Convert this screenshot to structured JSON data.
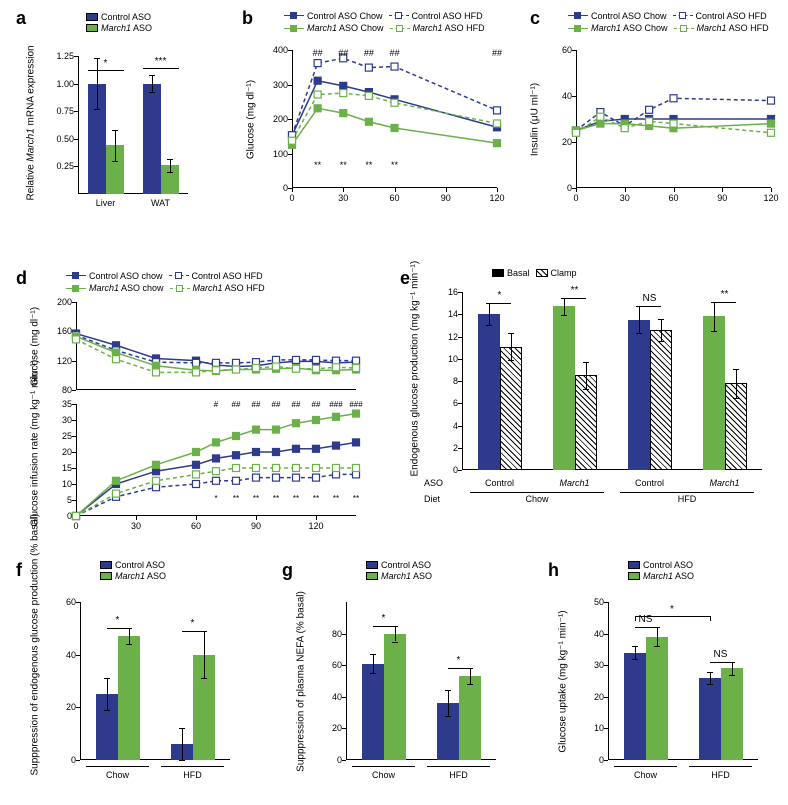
{
  "colors": {
    "blue": "#2e3a8c",
    "green": "#6cb04a",
    "white": "#ffffff",
    "black": "#000000"
  },
  "fonts": {
    "panel_letter": 18,
    "axis": 10,
    "tick": 9,
    "legend": 9
  },
  "panel_a": {
    "letter": "a",
    "y_label": "Relative March1 mRNA expression",
    "x_categories": [
      "Liver",
      "WAT"
    ],
    "legend": [
      {
        "label": "Control ASO",
        "color": "#2e3a8c"
      },
      {
        "label": "March1 ASO",
        "color": "#6cb04a"
      }
    ],
    "y_lim": [
      0,
      1.25
    ],
    "y_ticks": [
      0.25,
      0.5,
      0.75,
      1.0,
      1.25
    ],
    "bars": {
      "Liver": [
        {
          "val": 1.0,
          "err": 0.23,
          "color": "#2e3a8c"
        },
        {
          "val": 0.44,
          "err": 0.14,
          "color": "#6cb04a"
        }
      ],
      "WAT": [
        {
          "val": 1.0,
          "err": 0.08,
          "color": "#2e3a8c"
        },
        {
          "val": 0.26,
          "err": 0.06,
          "color": "#6cb04a"
        }
      ]
    },
    "sig": [
      {
        "label": "*",
        "group": "Liver"
      },
      {
        "label": "***",
        "group": "WAT"
      }
    ]
  },
  "panel_b": {
    "letter": "b",
    "y_label": "Glucose (mg dl⁻¹)",
    "x_label_min": "0",
    "x_values": [
      0,
      15,
      30,
      45,
      60,
      120
    ],
    "x_ticks": [
      0,
      30,
      60,
      90,
      120
    ],
    "y_lim": [
      0,
      400
    ],
    "y_ticks": [
      0,
      100,
      200,
      300,
      400
    ],
    "series": [
      {
        "name": "Control ASO Chow",
        "color": "#2e3a8c",
        "fill": "#2e3a8c",
        "dash": false,
        "data": [
          [
            0,
            152
          ],
          [
            15,
            311
          ],
          [
            30,
            296
          ],
          [
            45,
            278
          ],
          [
            60,
            257
          ],
          [
            120,
            176
          ]
        ]
      },
      {
        "name": "Control ASO HFD",
        "color": "#2e3a8c",
        "fill": "#ffffff",
        "dash": true,
        "data": [
          [
            0,
            153
          ],
          [
            15,
            362
          ],
          [
            30,
            376
          ],
          [
            45,
            349
          ],
          [
            60,
            352
          ],
          [
            120,
            225
          ]
        ]
      },
      {
        "name": "March1 ASO Chow",
        "color": "#6cb04a",
        "fill": "#6cb04a",
        "dash": false,
        "data": [
          [
            0,
            125
          ],
          [
            15,
            231
          ],
          [
            30,
            217
          ],
          [
            45,
            192
          ],
          [
            60,
            174
          ],
          [
            120,
            130
          ]
        ]
      },
      {
        "name": "March1 ASO HFD",
        "color": "#6cb04a",
        "fill": "#ffffff",
        "dash": true,
        "data": [
          [
            0,
            137
          ],
          [
            15,
            271
          ],
          [
            30,
            275
          ],
          [
            45,
            267
          ],
          [
            60,
            247
          ],
          [
            120,
            187
          ]
        ]
      }
    ],
    "annotations_top": [
      "##",
      "##",
      "##",
      "##",
      "##"
    ],
    "annotations_bot": [
      "**",
      "**",
      "**",
      "**"
    ]
  },
  "panel_c": {
    "letter": "c",
    "y_label": "Insulin (μU ml⁻¹)",
    "x_ticks": [
      0,
      30,
      60,
      90,
      120
    ],
    "y_lim": [
      0,
      60
    ],
    "y_ticks": [
      0,
      20,
      40,
      60
    ],
    "series": [
      {
        "name": "Control ASO Chow",
        "color": "#2e3a8c",
        "fill": "#2e3a8c",
        "dash": false,
        "data": [
          [
            0,
            25
          ],
          [
            15,
            29
          ],
          [
            30,
            30
          ],
          [
            45,
            30
          ],
          [
            60,
            30
          ],
          [
            120,
            30
          ]
        ]
      },
      {
        "name": "Control ASO HFD",
        "color": "#2e3a8c",
        "fill": "#ffffff",
        "dash": true,
        "data": [
          [
            0,
            25
          ],
          [
            15,
            33
          ],
          [
            30,
            27
          ],
          [
            45,
            34
          ],
          [
            60,
            39
          ],
          [
            120,
            38
          ]
        ]
      },
      {
        "name": "March1 ASO Chow",
        "color": "#6cb04a",
        "fill": "#6cb04a",
        "dash": false,
        "data": [
          [
            0,
            25
          ],
          [
            15,
            28
          ],
          [
            30,
            28
          ],
          [
            45,
            27
          ],
          [
            60,
            26
          ],
          [
            120,
            28
          ]
        ]
      },
      {
        "name": "March1 ASO HFD",
        "color": "#6cb04a",
        "fill": "#ffffff",
        "dash": true,
        "data": [
          [
            0,
            24
          ],
          [
            15,
            31
          ],
          [
            30,
            26
          ],
          [
            45,
            29
          ],
          [
            60,
            28
          ],
          [
            120,
            24
          ]
        ]
      }
    ]
  },
  "panel_d": {
    "letter": "d",
    "top": {
      "y_label": "Glucose (mg dl⁻¹)",
      "y_lim": [
        80,
        200
      ],
      "y_ticks": [
        80,
        120,
        160,
        200
      ],
      "x_lim": [
        0,
        140
      ],
      "series": [
        {
          "color": "#2e3a8c",
          "fill": "#2e3a8c",
          "dash": false,
          "data": [
            [
              0,
              157
            ],
            [
              20,
              141
            ],
            [
              40,
              123
            ],
            [
              60,
              120
            ],
            [
              70,
              114
            ],
            [
              80,
              112
            ],
            [
              90,
              113
            ],
            [
              100,
              117
            ],
            [
              110,
              119
            ],
            [
              120,
              119
            ],
            [
              130,
              117
            ],
            [
              140,
              118
            ]
          ]
        },
        {
          "color": "#2e3a8c",
          "fill": "#ffffff",
          "dash": true,
          "data": [
            [
              0,
              155
            ],
            [
              20,
              134
            ],
            [
              40,
              118
            ],
            [
              60,
              117
            ],
            [
              70,
              117
            ],
            [
              80,
              117
            ],
            [
              90,
              118
            ],
            [
              100,
              121
            ],
            [
              110,
              121
            ],
            [
              120,
              121
            ],
            [
              130,
              120
            ],
            [
              140,
              120
            ]
          ]
        },
        {
          "color": "#6cb04a",
          "fill": "#6cb04a",
          "dash": false,
          "data": [
            [
              0,
              153
            ],
            [
              20,
              131
            ],
            [
              40,
              113
            ],
            [
              60,
              107
            ],
            [
              70,
              106
            ],
            [
              80,
              108
            ],
            [
              90,
              108
            ],
            [
              100,
              109
            ],
            [
              110,
              110
            ],
            [
              120,
              107
            ],
            [
              130,
              107
            ],
            [
              140,
              108
            ]
          ]
        },
        {
          "color": "#6cb04a",
          "fill": "#ffffff",
          "dash": true,
          "data": [
            [
              0,
              149
            ],
            [
              20,
              122
            ],
            [
              40,
              104
            ],
            [
              60,
              104
            ],
            [
              70,
              107
            ],
            [
              80,
              108
            ],
            [
              90,
              110
            ],
            [
              100,
              112
            ],
            [
              110,
              109
            ],
            [
              120,
              109
            ],
            [
              130,
              111
            ],
            [
              140,
              110
            ]
          ]
        }
      ]
    },
    "bot": {
      "y_label": "Glucose infusion rate (mg kg⁻¹ min⁻¹)",
      "y_lim": [
        0,
        35
      ],
      "y_ticks": [
        0,
        5,
        10,
        15,
        20,
        25,
        30,
        35
      ],
      "x_ticks": [
        0,
        30,
        60,
        90,
        120
      ],
      "series": [
        {
          "color": "#2e3a8c",
          "fill": "#2e3a8c",
          "dash": false,
          "data": [
            [
              0,
              0
            ],
            [
              20,
              10
            ],
            [
              40,
              14
            ],
            [
              60,
              16
            ],
            [
              70,
              18
            ],
            [
              80,
              19
            ],
            [
              90,
              20
            ],
            [
              100,
              20
            ],
            [
              110,
              21
            ],
            [
              120,
              21
            ],
            [
              130,
              22
            ],
            [
              140,
              23
            ]
          ]
        },
        {
          "color": "#2e3a8c",
          "fill": "#ffffff",
          "dash": true,
          "data": [
            [
              0,
              0
            ],
            [
              20,
              6
            ],
            [
              40,
              9
            ],
            [
              60,
              10
            ],
            [
              70,
              11
            ],
            [
              80,
              11
            ],
            [
              90,
              12
            ],
            [
              100,
              12
            ],
            [
              110,
              12
            ],
            [
              120,
              12
            ],
            [
              130,
              13
            ],
            [
              140,
              13
            ]
          ]
        },
        {
          "color": "#6cb04a",
          "fill": "#6cb04a",
          "dash": false,
          "data": [
            [
              0,
              0
            ],
            [
              20,
              11
            ],
            [
              40,
              16
            ],
            [
              60,
              20
            ],
            [
              70,
              23
            ],
            [
              80,
              25
            ],
            [
              90,
              27
            ],
            [
              100,
              27
            ],
            [
              110,
              29
            ],
            [
              120,
              30
            ],
            [
              130,
              31
            ],
            [
              140,
              32
            ]
          ]
        },
        {
          "color": "#6cb04a",
          "fill": "#ffffff",
          "dash": true,
          "data": [
            [
              0,
              0
            ],
            [
              20,
              7
            ],
            [
              40,
              11
            ],
            [
              60,
              13
            ],
            [
              70,
              14
            ],
            [
              80,
              15
            ],
            [
              90,
              15
            ],
            [
              100,
              15
            ],
            [
              110,
              15
            ],
            [
              120,
              15
            ],
            [
              130,
              15
            ],
            [
              140,
              15
            ]
          ]
        }
      ],
      "ann_top": [
        "#",
        "##",
        "##",
        "##",
        "##",
        "##",
        "###",
        "###"
      ],
      "ann_bot": [
        "*",
        "**",
        "**",
        "**",
        "**",
        "**",
        "**",
        "**"
      ]
    },
    "legend": [
      {
        "label": "Control ASO chow",
        "color": "#2e3a8c",
        "fill": "#2e3a8c",
        "dash": false
      },
      {
        "label": "Control ASO HFD",
        "color": "#2e3a8c",
        "fill": "#ffffff",
        "dash": true
      },
      {
        "label": "March1 ASO chow",
        "color": "#6cb04a",
        "fill": "#6cb04a",
        "dash": false
      },
      {
        "label": "March1 ASO HFD",
        "color": "#6cb04a",
        "fill": "#ffffff",
        "dash": true
      }
    ]
  },
  "panel_e": {
    "letter": "e",
    "y_label": "Endogenous glucose production (mg kg⁻¹ min⁻¹)",
    "y_lim": [
      0,
      16
    ],
    "y_ticks": [
      0,
      2,
      4,
      6,
      8,
      10,
      12,
      14,
      16
    ],
    "legend": [
      {
        "label": "Basal",
        "fill": "solid"
      },
      {
        "label": "Clamp",
        "fill": "hatched"
      }
    ],
    "row_labels": [
      "ASO",
      "Diet"
    ],
    "groups": [
      {
        "aso": "Control",
        "diet": "Chow",
        "basal": {
          "val": 14.0,
          "err": 1.0,
          "color": "#2e3a8c"
        },
        "clamp": {
          "val": 11.1,
          "err": 1.2
        },
        "sig": "*"
      },
      {
        "aso": "March1",
        "diet": "Chow",
        "basal": {
          "val": 14.7,
          "err": 0.8,
          "color": "#6cb04a"
        },
        "clamp": {
          "val": 8.5,
          "err": 1.2
        },
        "sig": "**"
      },
      {
        "aso": "Control",
        "diet": "HFD",
        "basal": {
          "val": 13.5,
          "err": 1.2,
          "color": "#2e3a8c"
        },
        "clamp": {
          "val": 12.6,
          "err": 1.0
        },
        "sig": "NS"
      },
      {
        "aso": "March1",
        "diet": "HFD",
        "basal": {
          "val": 13.8,
          "err": 1.3,
          "color": "#6cb04a"
        },
        "clamp": {
          "val": 7.8,
          "err": 1.3
        },
        "sig": "**"
      }
    ]
  },
  "panel_f": {
    "letter": "f",
    "y_label": "Supppression of endogenous glucose production (% basal)",
    "y_lim": [
      0,
      60
    ],
    "y_ticks": [
      0,
      20,
      40,
      60
    ],
    "x_categories": [
      "Chow",
      "HFD"
    ],
    "legend": [
      {
        "label": "Control ASO",
        "color": "#2e3a8c"
      },
      {
        "label": "March1 ASO",
        "color": "#6cb04a"
      }
    ],
    "bars": {
      "Chow": [
        {
          "val": 25,
          "err": 6,
          "color": "#2e3a8c"
        },
        {
          "val": 47,
          "err": 3,
          "color": "#6cb04a"
        }
      ],
      "HFD": [
        {
          "val": 6,
          "err": 6,
          "color": "#2e3a8c"
        },
        {
          "val": 40,
          "err": 9,
          "color": "#6cb04a"
        }
      ]
    },
    "sig": [
      {
        "label": "*",
        "group": "Chow"
      },
      {
        "label": "*",
        "group": "HFD"
      }
    ]
  },
  "panel_g": {
    "letter": "g",
    "y_label": "Supppression of plasma NEFA (% basal)",
    "y_lim": [
      0,
      100
    ],
    "y_ticks": [
      0,
      20,
      40,
      60,
      80
    ],
    "x_categories": [
      "Chow",
      "HFD"
    ],
    "legend": [
      {
        "label": "Control ASO",
        "color": "#2e3a8c"
      },
      {
        "label": "March1 ASO",
        "color": "#6cb04a"
      }
    ],
    "bars": {
      "Chow": [
        {
          "val": 61,
          "err": 6,
          "color": "#2e3a8c"
        },
        {
          "val": 80,
          "err": 5,
          "color": "#6cb04a"
        }
      ],
      "HFD": [
        {
          "val": 36,
          "err": 8,
          "color": "#2e3a8c"
        },
        {
          "val": 53,
          "err": 5,
          "color": "#6cb04a"
        }
      ]
    },
    "sig": [
      {
        "label": "*",
        "group": "Chow"
      },
      {
        "label": "*",
        "group": "HFD"
      }
    ]
  },
  "panel_h": {
    "letter": "h",
    "y_label": "Glucose uptake (mg kg⁻¹ min⁻¹)",
    "y_lim": [
      0,
      50
    ],
    "y_ticks": [
      0,
      10,
      20,
      30,
      40,
      50
    ],
    "x_categories": [
      "Chow",
      "HFD"
    ],
    "legend": [
      {
        "label": "Control ASO",
        "color": "#2e3a8c"
      },
      {
        "label": "March1 ASO",
        "color": "#6cb04a"
      }
    ],
    "bars": {
      "Chow": [
        {
          "val": 34,
          "err": 2,
          "color": "#2e3a8c"
        },
        {
          "val": 39,
          "err": 3,
          "color": "#6cb04a"
        }
      ],
      "HFD": [
        {
          "val": 26,
          "err": 2,
          "color": "#2e3a8c"
        },
        {
          "val": 29,
          "err": 2,
          "color": "#6cb04a"
        }
      ]
    },
    "sig": [
      {
        "label": "NS",
        "group": "Chow"
      },
      {
        "label": "NS",
        "group": "HFD"
      }
    ],
    "overall_sig": "*"
  }
}
